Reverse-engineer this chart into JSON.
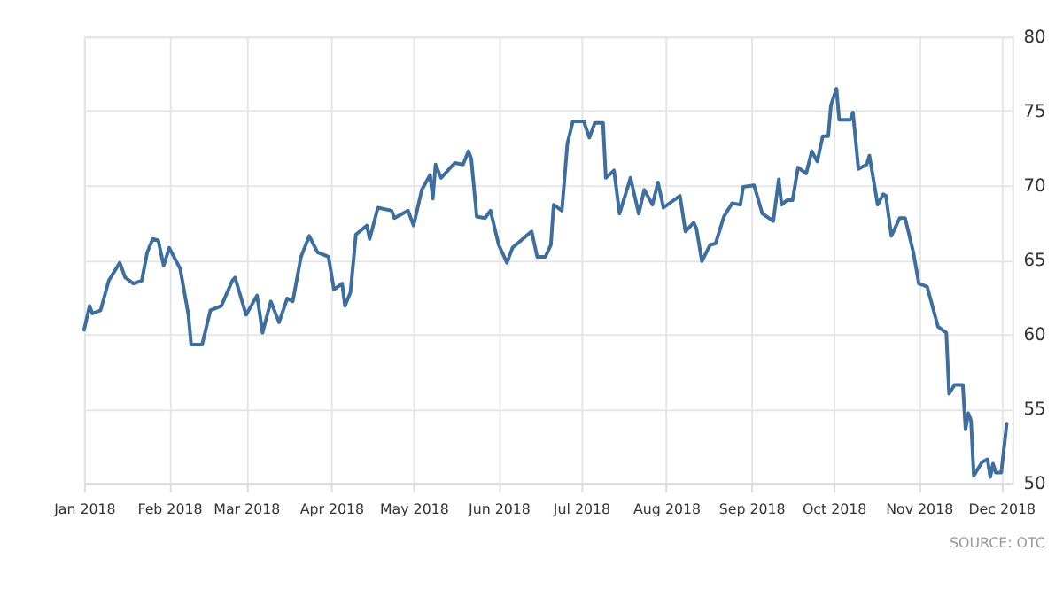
{
  "chart_data": {
    "type": "line",
    "annotations": [
      "SOURCE: OTC"
    ],
    "x": [
      "2018-01-01",
      "2018-01-03",
      "2018-01-04",
      "2018-01-07",
      "2018-01-10",
      "2018-01-14",
      "2018-01-16",
      "2018-01-19",
      "2018-01-22",
      "2018-01-24",
      "2018-01-26",
      "2018-01-28",
      "2018-01-30",
      "2018-02-01",
      "2018-02-05",
      "2018-02-08",
      "2018-02-09",
      "2018-02-13",
      "2018-02-16",
      "2018-02-20",
      "2018-02-24",
      "2018-02-25",
      "2018-03-01",
      "2018-03-05",
      "2018-03-07",
      "2018-03-10",
      "2018-03-13",
      "2018-03-16",
      "2018-03-18",
      "2018-03-21",
      "2018-03-24",
      "2018-03-27",
      "2018-03-31",
      "2018-04-02",
      "2018-04-05",
      "2018-04-06",
      "2018-04-08",
      "2018-04-10",
      "2018-04-14",
      "2018-04-15",
      "2018-04-18",
      "2018-04-23",
      "2018-04-24",
      "2018-04-29",
      "2018-05-01",
      "2018-05-04",
      "2018-05-07",
      "2018-05-08",
      "2018-05-09",
      "2018-05-11",
      "2018-05-16",
      "2018-05-19",
      "2018-05-21",
      "2018-05-22",
      "2018-05-24",
      "2018-05-27",
      "2018-05-29",
      "2018-06-01",
      "2018-06-04",
      "2018-06-06",
      "2018-06-11",
      "2018-06-13",
      "2018-06-15",
      "2018-06-18",
      "2018-06-20",
      "2018-06-21",
      "2018-06-24",
      "2018-06-26",
      "2018-06-28",
      "2018-07-02",
      "2018-07-04",
      "2018-07-06",
      "2018-07-09",
      "2018-07-10",
      "2018-07-13",
      "2018-07-15",
      "2018-07-19",
      "2018-07-22",
      "2018-07-24",
      "2018-07-27",
      "2018-07-29",
      "2018-07-31",
      "2018-08-03",
      "2018-08-06",
      "2018-08-08",
      "2018-08-11",
      "2018-08-12",
      "2018-08-14",
      "2018-08-17",
      "2018-08-19",
      "2018-08-22",
      "2018-08-25",
      "2018-08-28",
      "2018-08-29",
      "2018-09-02",
      "2018-09-05",
      "2018-09-09",
      "2018-09-11",
      "2018-09-12",
      "2018-09-14",
      "2018-09-16",
      "2018-09-18",
      "2018-09-21",
      "2018-09-23",
      "2018-09-25",
      "2018-09-27",
      "2018-09-29",
      "2018-09-30",
      "2018-10-02",
      "2018-10-03",
      "2018-10-07",
      "2018-10-08",
      "2018-10-10",
      "2018-10-13",
      "2018-10-14",
      "2018-10-17",
      "2018-10-19",
      "2018-10-20",
      "2018-10-22",
      "2018-10-25",
      "2018-10-27",
      "2018-10-30",
      "2018-11-01",
      "2018-11-04",
      "2018-11-08",
      "2018-11-11",
      "2018-11-12",
      "2018-11-14",
      "2018-11-17",
      "2018-11-18",
      "2018-11-19",
      "2018-11-20",
      "2018-11-21",
      "2018-11-24",
      "2018-11-26",
      "2018-11-27",
      "2018-11-28",
      "2018-11-29",
      "2018-12-01",
      "2018-12-03"
    ],
    "series": [
      {
        "color": "#3d6e9e",
        "values": [
          60.3,
          61.9,
          61.4,
          61.6,
          63.6,
          64.8,
          63.8,
          63.4,
          63.6,
          65.5,
          66.4,
          66.3,
          64.6,
          65.8,
          64.4,
          61.3,
          59.3,
          59.3,
          61.6,
          61.9,
          63.6,
          63.8,
          61.3,
          62.6,
          60.1,
          62.2,
          60.8,
          62.4,
          62.2,
          65.2,
          66.6,
          65.5,
          65.2,
          63.0,
          63.4,
          61.9,
          62.8,
          66.7,
          67.3,
          66.4,
          68.5,
          68.3,
          67.8,
          68.3,
          67.3,
          69.7,
          70.7,
          69.1,
          71.4,
          70.5,
          71.5,
          71.4,
          72.3,
          71.8,
          67.9,
          67.8,
          68.3,
          66.0,
          64.8,
          65.8,
          66.6,
          66.9,
          65.2,
          65.2,
          66.0,
          68.7,
          68.3,
          72.8,
          74.3,
          74.3,
          73.2,
          74.2,
          74.2,
          70.5,
          71.0,
          68.1,
          70.5,
          68.1,
          69.7,
          68.7,
          70.2,
          68.5,
          68.9,
          69.3,
          66.9,
          67.5,
          67.1,
          64.9,
          66.0,
          66.1,
          67.9,
          68.8,
          68.7,
          69.9,
          70.0,
          68.1,
          67.6,
          70.4,
          68.7,
          69.0,
          69.0,
          71.2,
          70.8,
          72.3,
          71.6,
          73.3,
          73.3,
          75.4,
          76.5,
          74.4,
          74.4,
          74.9,
          71.1,
          71.4,
          72.0,
          68.7,
          69.4,
          69.3,
          66.6,
          67.8,
          67.8,
          65.5,
          63.4,
          63.2,
          60.5,
          60.1,
          56.0,
          56.6,
          56.6,
          53.6,
          54.7,
          54.2,
          50.5,
          51.4,
          51.6,
          50.4,
          51.3,
          50.7,
          50.7,
          54.0
        ]
      }
    ],
    "xlim": [
      "2018-01-01",
      "2018-12-05"
    ],
    "xticks": [
      {
        "value": "2018-01-01",
        "label": "Jan 2018"
      },
      {
        "value": "2018-02-01",
        "label": "Feb 2018"
      },
      {
        "value": "2018-03-01",
        "label": "Mar 2018"
      },
      {
        "value": "2018-04-01",
        "label": "Apr 2018"
      },
      {
        "value": "2018-05-01",
        "label": "May 2018"
      },
      {
        "value": "2018-06-01",
        "label": "Jun 2018"
      },
      {
        "value": "2018-07-01",
        "label": "Jul 2018"
      },
      {
        "value": "2018-08-01",
        "label": "Aug 2018"
      },
      {
        "value": "2018-09-01",
        "label": "Sep 2018"
      },
      {
        "value": "2018-10-01",
        "label": "Oct 2018"
      },
      {
        "value": "2018-11-01",
        "label": "Nov 2018"
      },
      {
        "value": "2018-12-01",
        "label": "Dec 2018"
      }
    ],
    "ylim": [
      50,
      80
    ],
    "yticks": [
      50,
      55,
      60,
      65,
      70,
      75,
      80
    ],
    "grid": true,
    "marker": "none",
    "line_style": "solid"
  }
}
